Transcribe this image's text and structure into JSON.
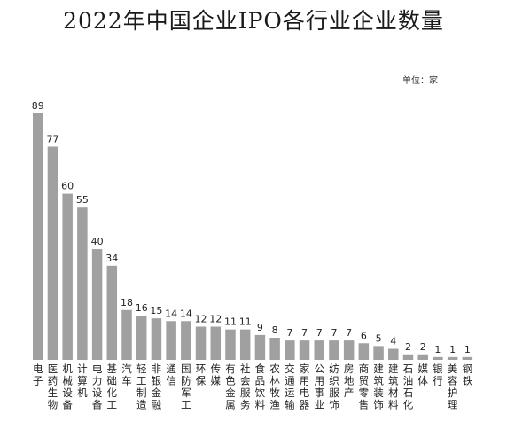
{
  "chart_data": {
    "type": "bar",
    "title": "2022年中国企业IPO各行业企业数量",
    "unit": "单位：家",
    "categories": [
      "电子",
      "医药生物",
      "机械设备",
      "计算机",
      "电力设备",
      "基础化工",
      "汽车",
      "轻工制造",
      "非银金融",
      "通信",
      "国防军工",
      "环保",
      "传媒",
      "有色金属",
      "社会服务",
      "食品饮料",
      "农林牧渔",
      "交通运输",
      "家用电器",
      "公用事业",
      "纺织服饰",
      "房地产",
      "商贸零售",
      "建筑装饰",
      "建筑材料",
      "石油石化",
      "媒体",
      "银行",
      "美容护理",
      "钢铁"
    ],
    "values": [
      89,
      77,
      60,
      55,
      40,
      34,
      18,
      16,
      15,
      14,
      14,
      12,
      12,
      11,
      11,
      9,
      8,
      7,
      7,
      7,
      7,
      7,
      6,
      5,
      4,
      2,
      2,
      1,
      1,
      1
    ],
    "bar_color": "#a0a0a0",
    "ylim": [
      0,
      89
    ],
    "grid": false,
    "legend": "none"
  }
}
